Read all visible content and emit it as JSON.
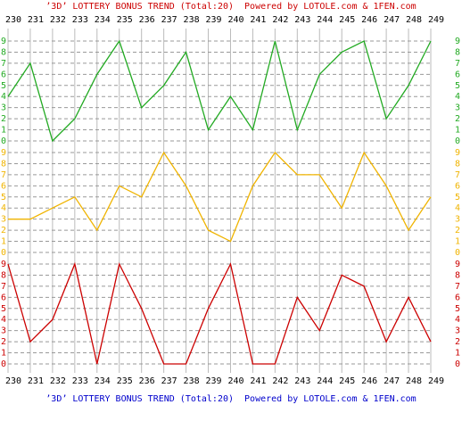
{
  "chart_data": {
    "type": "line",
    "title": "’3D’ LOTTERY BONUS TREND (Total:20)  Powered by LOTOLE.com & 1FEN.com",
    "categories": [
      "230",
      "231",
      "232",
      "233",
      "234",
      "235",
      "236",
      "237",
      "238",
      "239",
      "240",
      "241",
      "242",
      "243",
      "244",
      "245",
      "246",
      "247",
      "248",
      "249"
    ],
    "ylim": [
      0,
      9
    ],
    "yticks": [
      0,
      1,
      2,
      3,
      4,
      5,
      6,
      7,
      8,
      9
    ],
    "grid": true,
    "series": [
      {
        "color": "#22aa22",
        "values": [
          4,
          7,
          0,
          2,
          6,
          9,
          3,
          5,
          8,
          1,
          4,
          1,
          9,
          1,
          6,
          8,
          9,
          2,
          5,
          9
        ]
      },
      {
        "color": "#f0b400",
        "values": [
          3,
          3,
          4,
          5,
          2,
          6,
          5,
          9,
          6,
          2,
          1,
          6,
          9,
          7,
          7,
          4,
          9,
          6,
          2,
          5
        ]
      },
      {
        "color": "#cc0000",
        "values": [
          9,
          2,
          4,
          9,
          0,
          9,
          5,
          0,
          0,
          5,
          9,
          0,
          0,
          6,
          3,
          8,
          7,
          2,
          6,
          2
        ]
      }
    ]
  }
}
